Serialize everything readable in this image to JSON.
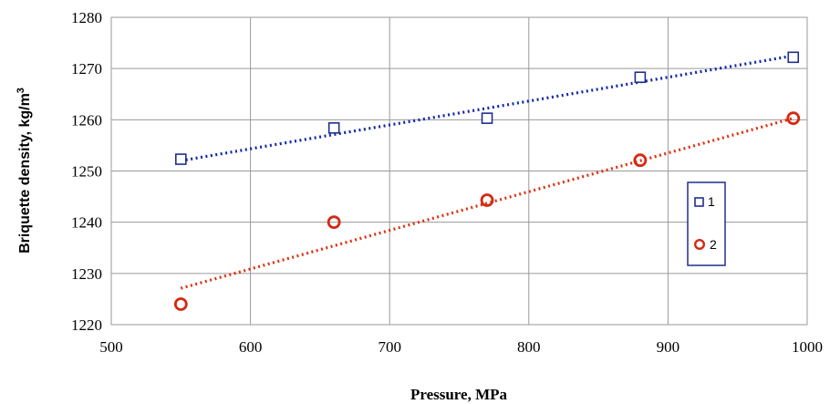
{
  "chart_data": {
    "type": "scatter",
    "xlabel": "Pressure, MPa",
    "ylabel": "Briquette density, kg/m",
    "ylabel_superscript": "3",
    "xlim": [
      500,
      1000
    ],
    "ylim": [
      1220,
      1280
    ],
    "xticks": [
      500,
      600,
      700,
      800,
      900,
      1000
    ],
    "yticks": [
      1220,
      1230,
      1240,
      1250,
      1260,
      1270,
      1280
    ],
    "grid": true,
    "legend_position": "right",
    "series": [
      {
        "name": "1",
        "marker": "square",
        "color": "#1f2f8f",
        "trendline_color": "#1428a8",
        "x": [
          550,
          660,
          770,
          880,
          990
        ],
        "y": [
          1252.3,
          1258.4,
          1260.3,
          1268.3,
          1272.2
        ],
        "trendline": {
          "type": "linear",
          "x": [
            550,
            990
          ],
          "y": [
            1252.0,
            1272.5
          ]
        }
      },
      {
        "name": "2",
        "marker": "circle",
        "color": "#d42a12",
        "trendline_color": "#e03010",
        "x": [
          550,
          660,
          770,
          880,
          990
        ],
        "y": [
          1224.0,
          1240.0,
          1244.3,
          1252.1,
          1260.3
        ],
        "trendline": {
          "type": "linear",
          "x": [
            550,
            990
          ],
          "y": [
            1227.1,
            1260.3
          ]
        }
      }
    ]
  }
}
